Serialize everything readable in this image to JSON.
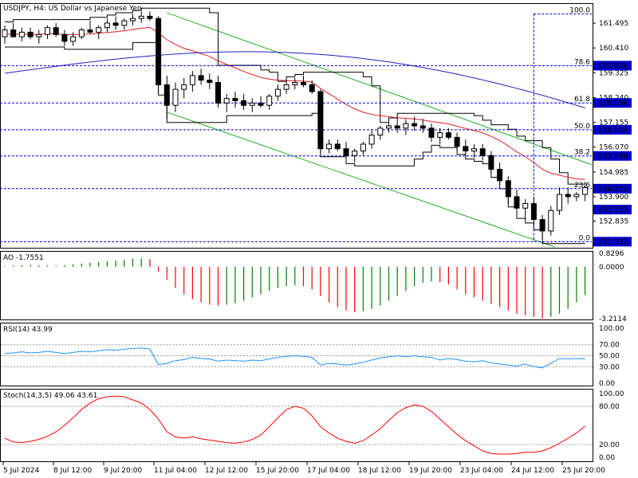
{
  "header": {
    "main_title": "USDJPY, H4: US Dollar vs Japanese Yen",
    "ao_title": "AO -1.7551",
    "rsi_title": "RSI(14) 43.99",
    "stoch_title": "Stoch(14,3,5) 49.06 43.61"
  },
  "colors": {
    "bull_body": "#ffffff",
    "bear_body": "#000000",
    "candle_outline": "#000000",
    "ma_red": "#e02020",
    "ma_blue": "#2020c0",
    "channel_green": "#20b020",
    "fib_line": "#0000cc",
    "ao_green": "#008000",
    "ao_red": "#ff0000",
    "rsi_line": "#1e90ff",
    "stoch_line": "#ff0000",
    "price_label_bg": "#0000cc"
  },
  "price_axis": {
    "ticks": [
      "161.495",
      "160.410",
      "159.325",
      "158.240",
      "157.155",
      "156.070",
      "154.985",
      "153.900",
      "152.835"
    ],
    "labels": [
      "159.636",
      "158.004",
      "156.830",
      "155.684",
      "154.252",
      "153.335",
      "151.932"
    ],
    "ylim": [
      151.7,
      162.3
    ]
  },
  "fibonacci": {
    "levels": [
      "100.0",
      "78.6",
      "61.8",
      "50.0",
      "38.2",
      "23.6",
      "0.0"
    ],
    "prices": [
      161.9,
      159.636,
      158.004,
      156.83,
      155.684,
      154.252,
      151.932
    ]
  },
  "x_axis": {
    "labels": [
      "5 Jul 2024",
      "8 Jul 12:00",
      "9 Jul 20:00",
      "11 Jul 04:00",
      "12 Jul 12:00",
      "15 Jul 20:00",
      "17 Jul 04:00",
      "18 Jul 12:00",
      "19 Jul 20:00",
      "23 Jul 04:00",
      "24 Jul 12:00",
      "25 Jul 20:00"
    ]
  },
  "ao_axis": {
    "ticks": [
      "0.8296",
      "0.0000",
      "-3.2114"
    ]
  },
  "rsi_axis": {
    "ticks": [
      "100.00",
      "70.00",
      "50.00",
      "30.00",
      "0.00"
    ]
  },
  "stoch_axis": {
    "ticks": [
      "100.00",
      "80.00",
      "20.00",
      "0.00"
    ]
  },
  "chart_data": {
    "type": "candlestick",
    "title": "USDJPY, H4: US Dollar vs Japanese Yen",
    "candles": [
      [
        160.9,
        161.4,
        160.6,
        161.2
      ],
      [
        161.2,
        161.5,
        160.9,
        160.9
      ],
      [
        160.9,
        161.3,
        160.7,
        161.1
      ],
      [
        161.1,
        161.3,
        160.8,
        160.9
      ],
      [
        160.9,
        161.2,
        160.6,
        161.0
      ],
      [
        161.0,
        161.4,
        160.8,
        161.3
      ],
      [
        161.3,
        161.5,
        160.9,
        161.0
      ],
      [
        161.0,
        161.2,
        160.5,
        160.7
      ],
      [
        160.7,
        161.1,
        160.5,
        160.9
      ],
      [
        160.9,
        161.3,
        160.8,
        161.2
      ],
      [
        161.2,
        161.6,
        161.0,
        161.1
      ],
      [
        161.1,
        161.4,
        160.8,
        161.3
      ],
      [
        161.3,
        161.7,
        161.1,
        161.5
      ],
      [
        161.5,
        161.8,
        161.2,
        161.4
      ],
      [
        161.4,
        161.7,
        161.2,
        161.6
      ],
      [
        161.6,
        161.9,
        161.4,
        161.7
      ],
      [
        161.7,
        162.0,
        161.5,
        161.8
      ],
      [
        161.8,
        162.0,
        161.6,
        161.7
      ],
      [
        161.7,
        161.8,
        158.5,
        158.8
      ],
      [
        158.8,
        159.2,
        157.3,
        157.9
      ],
      [
        157.9,
        158.9,
        157.6,
        158.6
      ],
      [
        158.6,
        159.1,
        158.2,
        158.8
      ],
      [
        158.8,
        159.4,
        158.5,
        159.2
      ],
      [
        159.2,
        159.5,
        158.8,
        159.0
      ],
      [
        159.0,
        159.3,
        158.6,
        158.9
      ],
      [
        158.9,
        159.2,
        157.8,
        158.0
      ],
      [
        158.0,
        158.4,
        157.6,
        158.2
      ],
      [
        158.2,
        158.5,
        157.8,
        158.1
      ],
      [
        158.1,
        158.4,
        157.7,
        157.9
      ],
      [
        157.9,
        158.2,
        157.6,
        158.0
      ],
      [
        158.0,
        158.3,
        157.8,
        157.9
      ],
      [
        157.9,
        158.4,
        157.7,
        158.3
      ],
      [
        158.3,
        158.8,
        158.1,
        158.6
      ],
      [
        158.6,
        159.0,
        158.4,
        158.8
      ],
      [
        158.8,
        159.1,
        158.6,
        158.9
      ],
      [
        158.9,
        159.2,
        158.7,
        158.8
      ],
      [
        158.8,
        159.0,
        158.4,
        158.5
      ],
      [
        158.5,
        158.6,
        155.8,
        156.0
      ],
      [
        156.0,
        156.4,
        155.8,
        156.2
      ],
      [
        156.2,
        156.4,
        155.9,
        156.0
      ],
      [
        156.0,
        156.3,
        155.5,
        155.7
      ],
      [
        155.7,
        156.0,
        155.4,
        155.9
      ],
      [
        155.9,
        156.3,
        155.7,
        156.2
      ],
      [
        156.2,
        156.8,
        156.0,
        156.6
      ],
      [
        156.6,
        157.0,
        156.4,
        156.9
      ],
      [
        156.9,
        157.2,
        156.7,
        157.0
      ],
      [
        157.0,
        157.4,
        156.7,
        156.9
      ],
      [
        156.9,
        157.3,
        156.6,
        157.1
      ],
      [
        157.1,
        157.4,
        156.8,
        157.0
      ],
      [
        157.0,
        157.3,
        156.7,
        156.9
      ],
      [
        156.9,
        157.1,
        156.3,
        156.5
      ],
      [
        156.5,
        156.9,
        156.2,
        156.7
      ],
      [
        156.7,
        156.9,
        156.4,
        156.5
      ],
      [
        156.5,
        156.7,
        155.9,
        156.1
      ],
      [
        156.1,
        156.4,
        155.7,
        155.9
      ],
      [
        155.9,
        156.2,
        155.6,
        156.0
      ],
      [
        156.0,
        156.2,
        155.5,
        155.7
      ],
      [
        155.7,
        155.9,
        154.9,
        155.1
      ],
      [
        155.1,
        155.4,
        154.4,
        154.6
      ],
      [
        154.6,
        154.8,
        153.6,
        153.9
      ],
      [
        153.9,
        154.2,
        153.1,
        153.4
      ],
      [
        153.4,
        153.8,
        152.9,
        153.6
      ],
      [
        153.6,
        153.9,
        152.6,
        152.9
      ],
      [
        152.9,
        153.1,
        152.0,
        152.4
      ],
      [
        152.4,
        153.5,
        152.2,
        153.3
      ],
      [
        153.3,
        154.3,
        153.1,
        154.0
      ],
      [
        154.0,
        154.3,
        153.6,
        153.9
      ],
      [
        153.9,
        154.1,
        153.7,
        154.0
      ],
      [
        154.0,
        154.4,
        153.7,
        154.3
      ]
    ],
    "ao_values": [
      0.05,
      0.08,
      0.1,
      0.12,
      0.1,
      0.08,
      0.06,
      0.1,
      0.15,
      0.2,
      0.25,
      0.3,
      0.35,
      0.4,
      0.45,
      0.5,
      0.52,
      0.48,
      -0.3,
      -0.8,
      -1.3,
      -1.7,
      -2.0,
      -2.2,
      -2.35,
      -2.4,
      -2.35,
      -2.25,
      -2.1,
      -1.9,
      -1.7,
      -1.5,
      -1.3,
      -1.2,
      -1.15,
      -1.2,
      -1.4,
      -1.8,
      -2.2,
      -2.5,
      -2.7,
      -2.8,
      -2.75,
      -2.6,
      -2.4,
      -2.1,
      -1.8,
      -1.5,
      -1.2,
      -1.0,
      -0.9,
      -0.95,
      -1.1,
      -1.4,
      -1.7,
      -1.9,
      -2.1,
      -2.3,
      -2.5,
      -2.7,
      -2.9,
      -3.0,
      -3.1,
      -3.2,
      -3.1,
      -2.9,
      -2.6,
      -2.2,
      -1.76
    ],
    "rsi_values": [
      54,
      55,
      57,
      55,
      56,
      58,
      56,
      54,
      56,
      58,
      57,
      59,
      61,
      60,
      62,
      63,
      64,
      62,
      34,
      36,
      41,
      43,
      47,
      45,
      44,
      40,
      42,
      41,
      40,
      42,
      41,
      44,
      47,
      49,
      50,
      49,
      47,
      33,
      36,
      35,
      33,
      35,
      38,
      42,
      46,
      48,
      50,
      48,
      50,
      48,
      47,
      42,
      45,
      43,
      40,
      39,
      41,
      37,
      35,
      33,
      31,
      35,
      30,
      28,
      36,
      45,
      44,
      45,
      43.99
    ],
    "stoch_values": [
      30,
      24,
      23,
      25,
      28,
      33,
      40,
      50,
      62,
      75,
      85,
      92,
      95,
      96,
      95,
      90,
      85,
      75,
      60,
      40,
      32,
      30,
      32,
      29,
      27,
      25,
      23,
      22,
      24,
      28,
      35,
      48,
      62,
      75,
      80,
      77,
      65,
      48,
      38,
      30,
      25,
      22,
      26,
      35,
      45,
      58,
      70,
      78,
      82,
      80,
      72,
      60,
      48,
      36,
      26,
      18,
      10,
      6,
      5,
      5,
      6,
      8,
      8,
      10,
      15,
      22,
      30,
      38,
      49.06
    ]
  }
}
